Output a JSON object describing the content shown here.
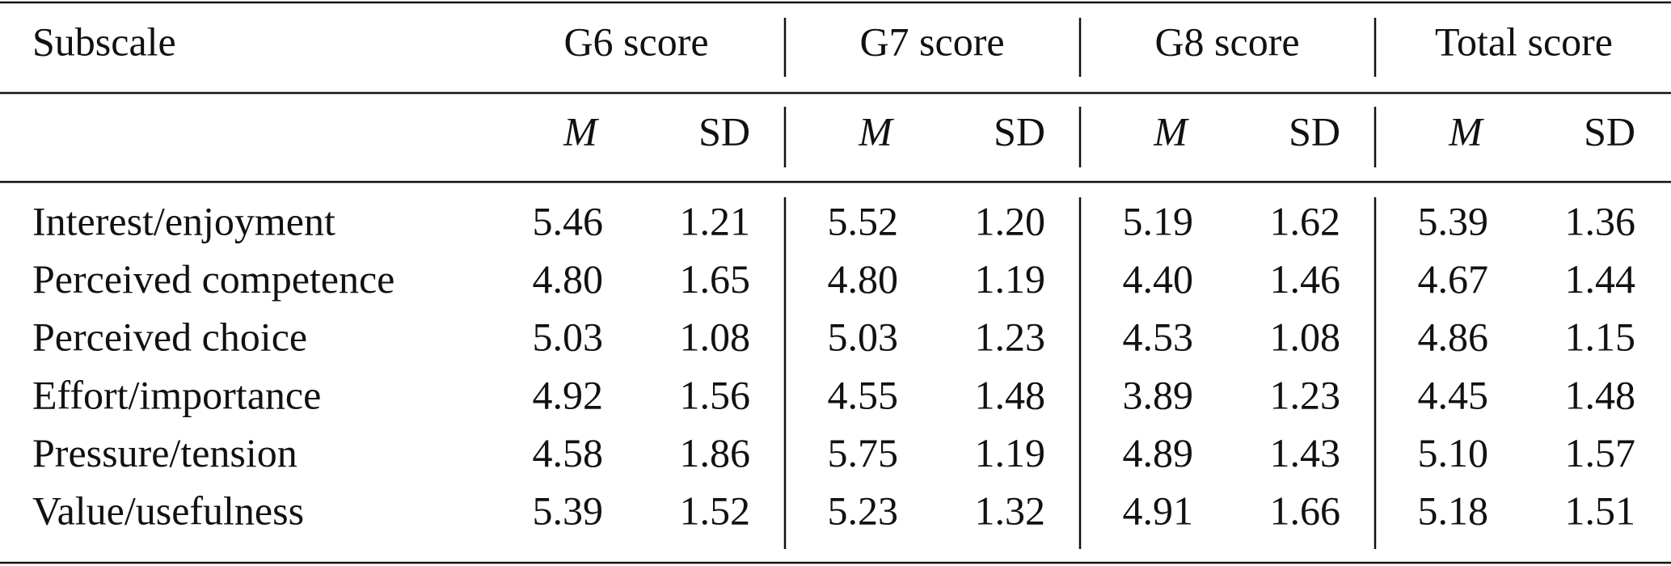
{
  "table": {
    "columns": [
      "Subscale",
      "G6 score",
      "G7 score",
      "G8 score",
      "Total score"
    ],
    "subheaders": [
      "M",
      "SD",
      "M",
      "SD",
      "M",
      "SD",
      "M",
      "SD"
    ],
    "rows": [
      {
        "label": "Interest/enjoyment",
        "values": [
          "5.46",
          "1.21",
          "5.52",
          "1.20",
          "5.19",
          "1.62",
          "5.39",
          "1.36"
        ]
      },
      {
        "label": "Perceived competence",
        "values": [
          "4.80",
          "1.65",
          "4.80",
          "1.19",
          "4.40",
          "1.46",
          "4.67",
          "1.44"
        ]
      },
      {
        "label": "Perceived choice",
        "values": [
          "5.03",
          "1.08",
          "5.03",
          "1.23",
          "4.53",
          "1.08",
          "4.86",
          "1.15"
        ]
      },
      {
        "label": "Effort/importance",
        "values": [
          "4.92",
          "1.56",
          "4.55",
          "1.48",
          "3.89",
          "1.23",
          "4.45",
          "1.48"
        ]
      },
      {
        "label": "Pressure/tension",
        "values": [
          "4.58",
          "1.86",
          "5.75",
          "1.19",
          "4.89",
          "1.43",
          "5.10",
          "1.57"
        ]
      },
      {
        "label": "Value/usefulness",
        "values": [
          "5.39",
          "1.52",
          "5.23",
          "1.32",
          "4.91",
          "1.66",
          "5.18",
          "1.51"
        ]
      }
    ]
  }
}
